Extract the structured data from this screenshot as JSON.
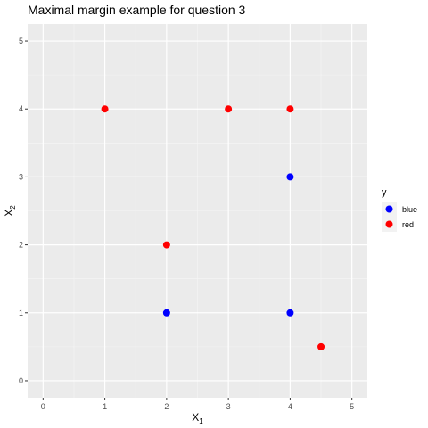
{
  "chart_data": {
    "type": "scatter",
    "title": "Maximal margin example for question 3",
    "xlabel": {
      "base": "X",
      "sub": "1"
    },
    "ylabel": {
      "base": "X",
      "sub": "2"
    },
    "xlim": [
      -0.25,
      5.25
    ],
    "ylim": [
      -0.25,
      5.25
    ],
    "x_ticks": [
      0,
      1,
      2,
      3,
      4,
      5
    ],
    "y_ticks": [
      0,
      1,
      2,
      3,
      4,
      5
    ],
    "grid": true,
    "legend": {
      "title": "y",
      "placement": "right",
      "entries": [
        {
          "label": "blue",
          "color": "#0000ff"
        },
        {
          "label": "red",
          "color": "#ff0000"
        }
      ]
    },
    "series": [
      {
        "name": "blue",
        "color": "#0000ff",
        "points": [
          {
            "x": 4,
            "y": 3
          },
          {
            "x": 2,
            "y": 1
          },
          {
            "x": 4,
            "y": 1
          }
        ]
      },
      {
        "name": "red",
        "color": "#ff0000",
        "points": [
          {
            "x": 1,
            "y": 4
          },
          {
            "x": 3,
            "y": 4
          },
          {
            "x": 4,
            "y": 4
          },
          {
            "x": 2,
            "y": 2
          },
          {
            "x": 4.5,
            "y": 0.5
          }
        ]
      }
    ]
  }
}
